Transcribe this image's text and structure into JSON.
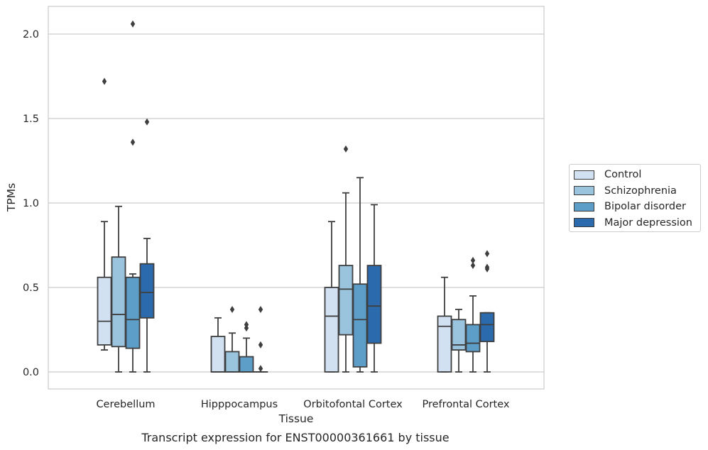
{
  "chart_data": {
    "type": "box",
    "title": "",
    "xlabel": "Tissue",
    "ylabel": "TPMs",
    "ylim": [
      -0.1,
      2.17
    ],
    "yticks": [
      "0.0",
      "0.5",
      "1.0",
      "1.5",
      "2.0"
    ],
    "grid": "horizontal",
    "legend_position": "right",
    "caption": "Transcript expression for ENST00000361661 by tissue",
    "categories": [
      "Cerebellum",
      "Hipppocampus",
      "Orbitofontal Cortex",
      "Prefrontal Cortex"
    ],
    "series": [
      {
        "name": "Control",
        "color": "#d2e1f1",
        "boxes": [
          {
            "whislo": 0.13,
            "q1": 0.16,
            "med": 0.3,
            "q3": 0.56,
            "whishi": 0.89,
            "fliers": [
              1.72
            ]
          },
          {
            "whislo": 0.0,
            "q1": 0.0,
            "med": 0.0,
            "q3": 0.21,
            "whishi": 0.32,
            "fliers": []
          },
          {
            "whislo": 0.0,
            "q1": 0.0,
            "med": 0.33,
            "q3": 0.5,
            "whishi": 0.89,
            "fliers": []
          },
          {
            "whislo": 0.0,
            "q1": 0.0,
            "med": 0.27,
            "q3": 0.33,
            "whishi": 0.56,
            "fliers": []
          }
        ]
      },
      {
        "name": "Schizophrenia",
        "color": "#9ac3dd",
        "boxes": [
          {
            "whislo": 0.0,
            "q1": 0.15,
            "med": 0.34,
            "q3": 0.68,
            "whishi": 0.98,
            "fliers": []
          },
          {
            "whislo": 0.0,
            "q1": 0.0,
            "med": 0.0,
            "q3": 0.12,
            "whishi": 0.23,
            "fliers": [
              0.37
            ]
          },
          {
            "whislo": 0.0,
            "q1": 0.22,
            "med": 0.49,
            "q3": 0.63,
            "whishi": 1.06,
            "fliers": [
              1.32
            ]
          },
          {
            "whislo": 0.0,
            "q1": 0.13,
            "med": 0.16,
            "q3": 0.31,
            "whishi": 0.37,
            "fliers": []
          }
        ]
      },
      {
        "name": "Bipolar disorder",
        "color": "#5d9ec9",
        "boxes": [
          {
            "whislo": 0.0,
            "q1": 0.14,
            "med": 0.31,
            "q3": 0.56,
            "whishi": 0.58,
            "fliers": [
              1.36,
              2.06
            ]
          },
          {
            "whislo": 0.0,
            "q1": 0.0,
            "med": 0.0,
            "q3": 0.09,
            "whishi": 0.2,
            "fliers": [
              0.26,
              0.28
            ]
          },
          {
            "whislo": 0.0,
            "q1": 0.03,
            "med": 0.31,
            "q3": 0.52,
            "whishi": 1.15,
            "fliers": []
          },
          {
            "whislo": 0.0,
            "q1": 0.12,
            "med": 0.17,
            "q3": 0.28,
            "whishi": 0.45,
            "fliers": [
              0.63,
              0.66
            ]
          }
        ]
      },
      {
        "name": "Major depression",
        "color": "#2a6aad",
        "boxes": [
          {
            "whislo": 0.0,
            "q1": 0.32,
            "med": 0.47,
            "q3": 0.64,
            "whishi": 0.79,
            "fliers": [
              1.48
            ]
          },
          {
            "whislo": 0.0,
            "q1": 0.0,
            "med": 0.0,
            "q3": 0.0,
            "whishi": 0.0,
            "fliers": [
              0.02,
              0.16,
              0.37
            ]
          },
          {
            "whislo": 0.0,
            "q1": 0.17,
            "med": 0.39,
            "q3": 0.63,
            "whishi": 0.99,
            "fliers": []
          },
          {
            "whislo": 0.0,
            "q1": 0.18,
            "med": 0.28,
            "q3": 0.35,
            "whishi": 0.35,
            "fliers": [
              0.61,
              0.62,
              0.7
            ]
          }
        ]
      }
    ]
  }
}
